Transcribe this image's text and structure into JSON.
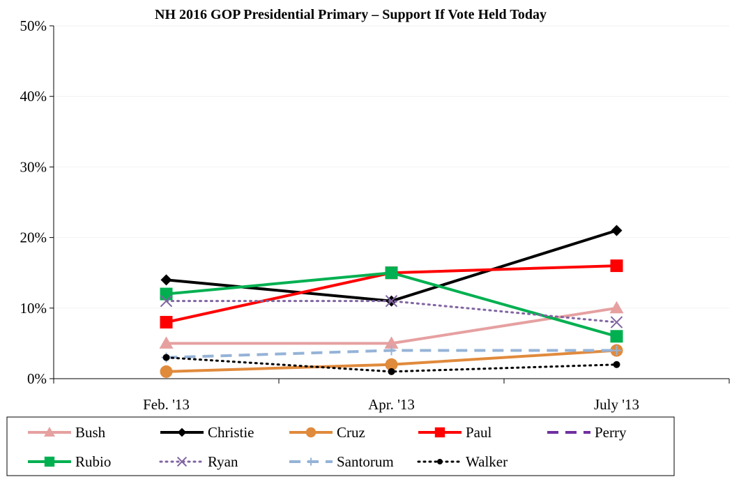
{
  "chart_data": {
    "type": "line",
    "title": "NH 2016 GOP Presidential Primary – Support If Vote Held Today",
    "xlabel": "",
    "ylabel": "",
    "categories": [
      "Feb. '13",
      "Apr. '13",
      "July '13"
    ],
    "y_ticks": [
      "0%",
      "10%",
      "20%",
      "30%",
      "40%",
      "50%"
    ],
    "ylim": [
      0,
      50
    ],
    "grid": true,
    "legend_position": "bottom",
    "series": [
      {
        "name": "Bush",
        "values": [
          5,
          5,
          10
        ],
        "color": "#e6a0a0",
        "marker": "triangle",
        "dash": "solid"
      },
      {
        "name": "Christie",
        "values": [
          14,
          11,
          21
        ],
        "color": "#000000",
        "marker": "diamond",
        "dash": "solid"
      },
      {
        "name": "Cruz",
        "values": [
          1,
          2,
          4
        ],
        "color": "#e08a3c",
        "marker": "circle",
        "dash": "solid"
      },
      {
        "name": "Paul",
        "values": [
          8,
          15,
          16
        ],
        "color": "#ff0000",
        "marker": "square",
        "dash": "solid"
      },
      {
        "name": "Perry",
        "values": [
          null,
          null,
          null
        ],
        "color": "#7030a0",
        "marker": "dash",
        "dash": "longdash"
      },
      {
        "name": "Rubio",
        "values": [
          12,
          15,
          6
        ],
        "color": "#00b050",
        "marker": "square",
        "dash": "solid"
      },
      {
        "name": "Ryan",
        "values": [
          11,
          11,
          8
        ],
        "color": "#8064a2",
        "marker": "x",
        "dash": "dotted"
      },
      {
        "name": "Santorum",
        "values": [
          3,
          4,
          4
        ],
        "color": "#95b3d7",
        "marker": "plus",
        "dash": "longdash"
      },
      {
        "name": "Walker",
        "values": [
          3,
          1,
          2
        ],
        "color": "#000000",
        "marker": "dot",
        "dash": "dotted"
      }
    ]
  }
}
